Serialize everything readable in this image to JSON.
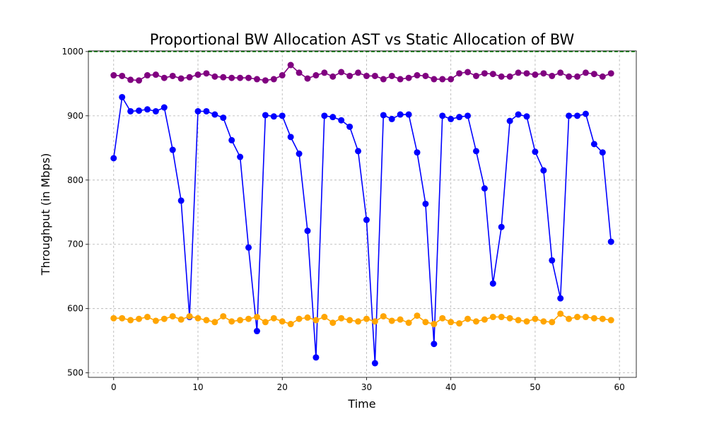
{
  "chart_data": {
    "type": "line",
    "title": "Proportional BW Allocation AST vs Static Allocation of BW",
    "xlabel": "Time",
    "ylabel": "Throughput (in Mbps)",
    "xlim": [
      -3,
      62
    ],
    "ylim": [
      493,
      1001
    ],
    "xticks": [
      0,
      10,
      20,
      30,
      40,
      50,
      60
    ],
    "yticks": [
      500,
      600,
      700,
      800,
      900,
      1000
    ],
    "grid": true,
    "reference_line": {
      "y": 1000,
      "color": "#008000",
      "style": "dashed"
    },
    "x": [
      0,
      1,
      2,
      3,
      4,
      5,
      6,
      7,
      8,
      9,
      10,
      11,
      12,
      13,
      14,
      15,
      16,
      17,
      18,
      19,
      20,
      21,
      22,
      23,
      24,
      25,
      26,
      27,
      28,
      29,
      30,
      31,
      32,
      33,
      34,
      35,
      36,
      37,
      38,
      39,
      40,
      41,
      42,
      43,
      44,
      45,
      46,
      47,
      48,
      49,
      50,
      51,
      52,
      53,
      54,
      55,
      56,
      57,
      58,
      59
    ],
    "series": [
      {
        "color": "#800080",
        "values": [
          963,
          962,
          956,
          955,
          963,
          964,
          959,
          962,
          958,
          960,
          964,
          966,
          961,
          960,
          959,
          959,
          959,
          957,
          955,
          957,
          963,
          979,
          967,
          958,
          963,
          967,
          961,
          968,
          962,
          967,
          962,
          962,
          957,
          962,
          957,
          959,
          963,
          962,
          957,
          957,
          957,
          966,
          968,
          962,
          966,
          965,
          961,
          961,
          967,
          966,
          964,
          966,
          962,
          967,
          961,
          961,
          967,
          965,
          961,
          966
        ]
      },
      {
        "color": "#0000ff",
        "values": [
          834,
          929,
          907,
          908,
          910,
          907,
          913,
          847,
          768,
          587,
          907,
          907,
          902,
          897,
          862,
          836,
          695,
          565,
          901,
          899,
          900,
          867,
          841,
          721,
          524,
          900,
          898,
          893,
          883,
          845,
          738,
          515,
          901,
          895,
          902,
          902,
          843,
          763,
          545,
          900,
          895,
          898,
          900,
          845,
          787,
          639,
          727,
          892,
          902,
          899,
          844,
          815,
          675,
          616,
          900,
          900,
          903,
          856,
          843,
          704
        ]
      },
      {
        "color": "#ffa500",
        "values": [
          585,
          585,
          582,
          584,
          587,
          581,
          584,
          588,
          583,
          588,
          585,
          582,
          579,
          588,
          580,
          582,
          584,
          587,
          579,
          585,
          580,
          576,
          584,
          586,
          582,
          587,
          578,
          585,
          582,
          580,
          584,
          580,
          588,
          581,
          583,
          578,
          589,
          579,
          576,
          585,
          579,
          577,
          584,
          580,
          583,
          587,
          587,
          585,
          582,
          580,
          584,
          580,
          579,
          592,
          584,
          587,
          587,
          585,
          584,
          582
        ]
      }
    ]
  }
}
